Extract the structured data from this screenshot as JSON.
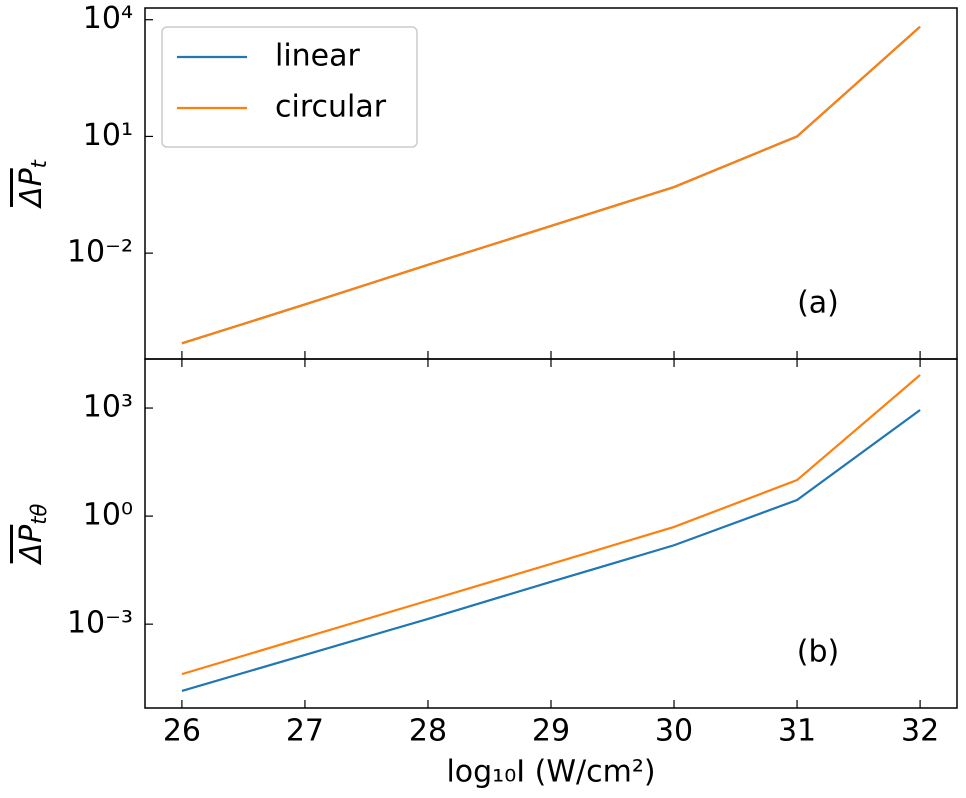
{
  "chart_data": [
    {
      "type": "line",
      "log_y": true,
      "annotation": "(a)",
      "ylabel": {
        "text": "ΔP",
        "sub": "t"
      },
      "x": [
        26,
        27,
        28,
        29,
        30,
        31,
        32
      ],
      "xlim": [
        25.7,
        32.3
      ],
      "xticks": [
        26,
        27,
        28,
        29,
        30,
        31,
        32
      ],
      "xticklabels": false,
      "ylim": [
        1.9e-05,
        20000
      ],
      "yticks": [
        {
          "value": 10000,
          "label": "10⁴"
        },
        {
          "value": 10,
          "label": "10¹"
        },
        {
          "value": 0.01,
          "label": "10⁻²"
        }
      ],
      "legend": "upper left",
      "series": [
        {
          "name": "linear",
          "color": "#1f77b4",
          "values": [
            4.8e-05,
            0.00048,
            0.005,
            0.05,
            0.5,
            10,
            6600
          ]
        },
        {
          "name": "circular",
          "color": "#ff7f0e",
          "values": [
            4.8e-05,
            0.00048,
            0.005,
            0.05,
            0.5,
            10,
            6600
          ]
        }
      ]
    },
    {
      "type": "line",
      "log_y": true,
      "annotation": "(b)",
      "ylabel": {
        "text": "ΔP",
        "sub": "tθ"
      },
      "xlabel": "log₁₀I (W/cm²)",
      "x": [
        26,
        27,
        28,
        29,
        30,
        31,
        32
      ],
      "xlim": [
        25.7,
        32.3
      ],
      "xticks": [
        26,
        27,
        28,
        29,
        30,
        31,
        32
      ],
      "xticklabels": true,
      "ylim": [
        4.7e-06,
        23000
      ],
      "yticks": [
        {
          "value": 1000,
          "label": "10³"
        },
        {
          "value": 1,
          "label": "10⁰"
        },
        {
          "value": 0.001,
          "label": "10⁻³"
        }
      ],
      "series": [
        {
          "color": "#1f77b4",
          "values": [
            1.4e-05,
            0.00014,
            0.0014,
            0.015,
            0.155,
            2.8,
            880
          ]
        },
        {
          "color": "#ff7f0e",
          "values": [
            4.1e-05,
            0.00043,
            0.0045,
            0.047,
            0.5,
            10,
            8300
          ]
        }
      ]
    }
  ]
}
